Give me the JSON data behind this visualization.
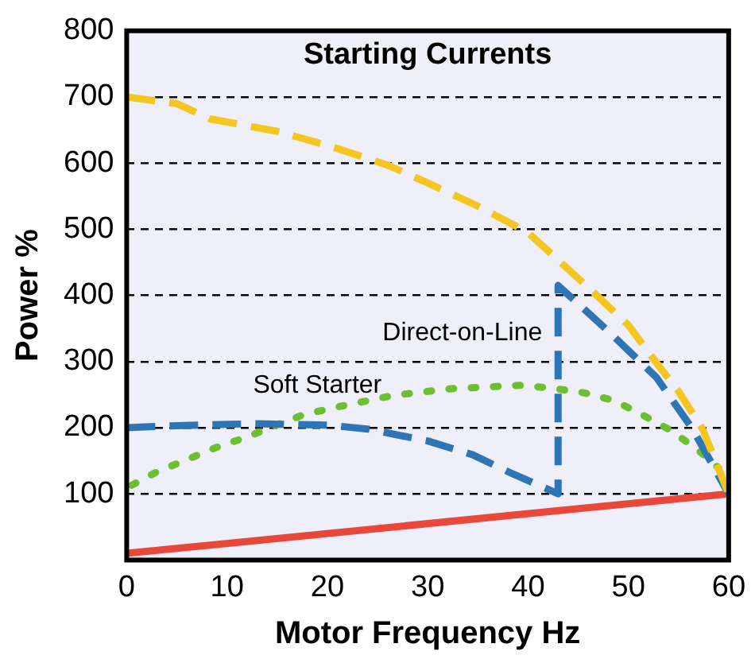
{
  "chart_data": {
    "type": "line",
    "title": "Starting Currents",
    "xlabel": "Motor Frequency Hz",
    "ylabel": "Power %",
    "xlim": [
      0,
      60
    ],
    "xticks": [
      0,
      10,
      20,
      30,
      40,
      50,
      60
    ],
    "ylim": [
      0,
      800
    ],
    "yticks": [
      100,
      200,
      300,
      400,
      500,
      600,
      700,
      800
    ],
    "grid": "y",
    "legend": false,
    "marker": "none",
    "series": [
      {
        "color": "#f5c521",
        "line_style": "dashed",
        "x": [
          0,
          5,
          8.3,
          15,
          20,
          26,
          30,
          35,
          40,
          46.5,
          50,
          52.7,
          55,
          57.4,
          60
        ],
        "values": [
          700,
          690,
          667,
          648,
          627,
          597,
          570,
          535,
          495,
          405,
          355,
          300,
          255,
          198,
          100
        ]
      },
      {
        "name": "Direct-on-Line",
        "color": "#2e75b6",
        "line_style": "dashed",
        "x": [
          0,
          5,
          12.5,
          20,
          24,
          30,
          34.5,
          38.5,
          43,
          43,
          48,
          52.8,
          56.4,
          60
        ],
        "values": [
          200,
          203,
          206,
          204,
          198,
          180,
          159,
          130,
          100,
          415,
          346,
          276,
          198,
          100
        ]
      },
      {
        "name": "Soft Starter",
        "color": "#6cbf2e",
        "line_style": "dotted",
        "x": [
          0.5,
          3,
          8.9,
          12,
          14.6,
          17.7,
          20.9,
          26.6,
          32.4,
          39.2,
          42.3,
          45.5,
          48.6,
          51.2,
          54,
          56.9,
          59
        ],
        "values": [
          113,
          133,
          170,
          186,
          202,
          220,
          231,
          249,
          259,
          264,
          260,
          253,
          241,
          221,
          198,
          167,
          139
        ]
      },
      {
        "color": "#e8473a",
        "line_style": "solid",
        "x": [
          0,
          60
        ],
        "values": [
          10,
          100
        ]
      }
    ]
  }
}
